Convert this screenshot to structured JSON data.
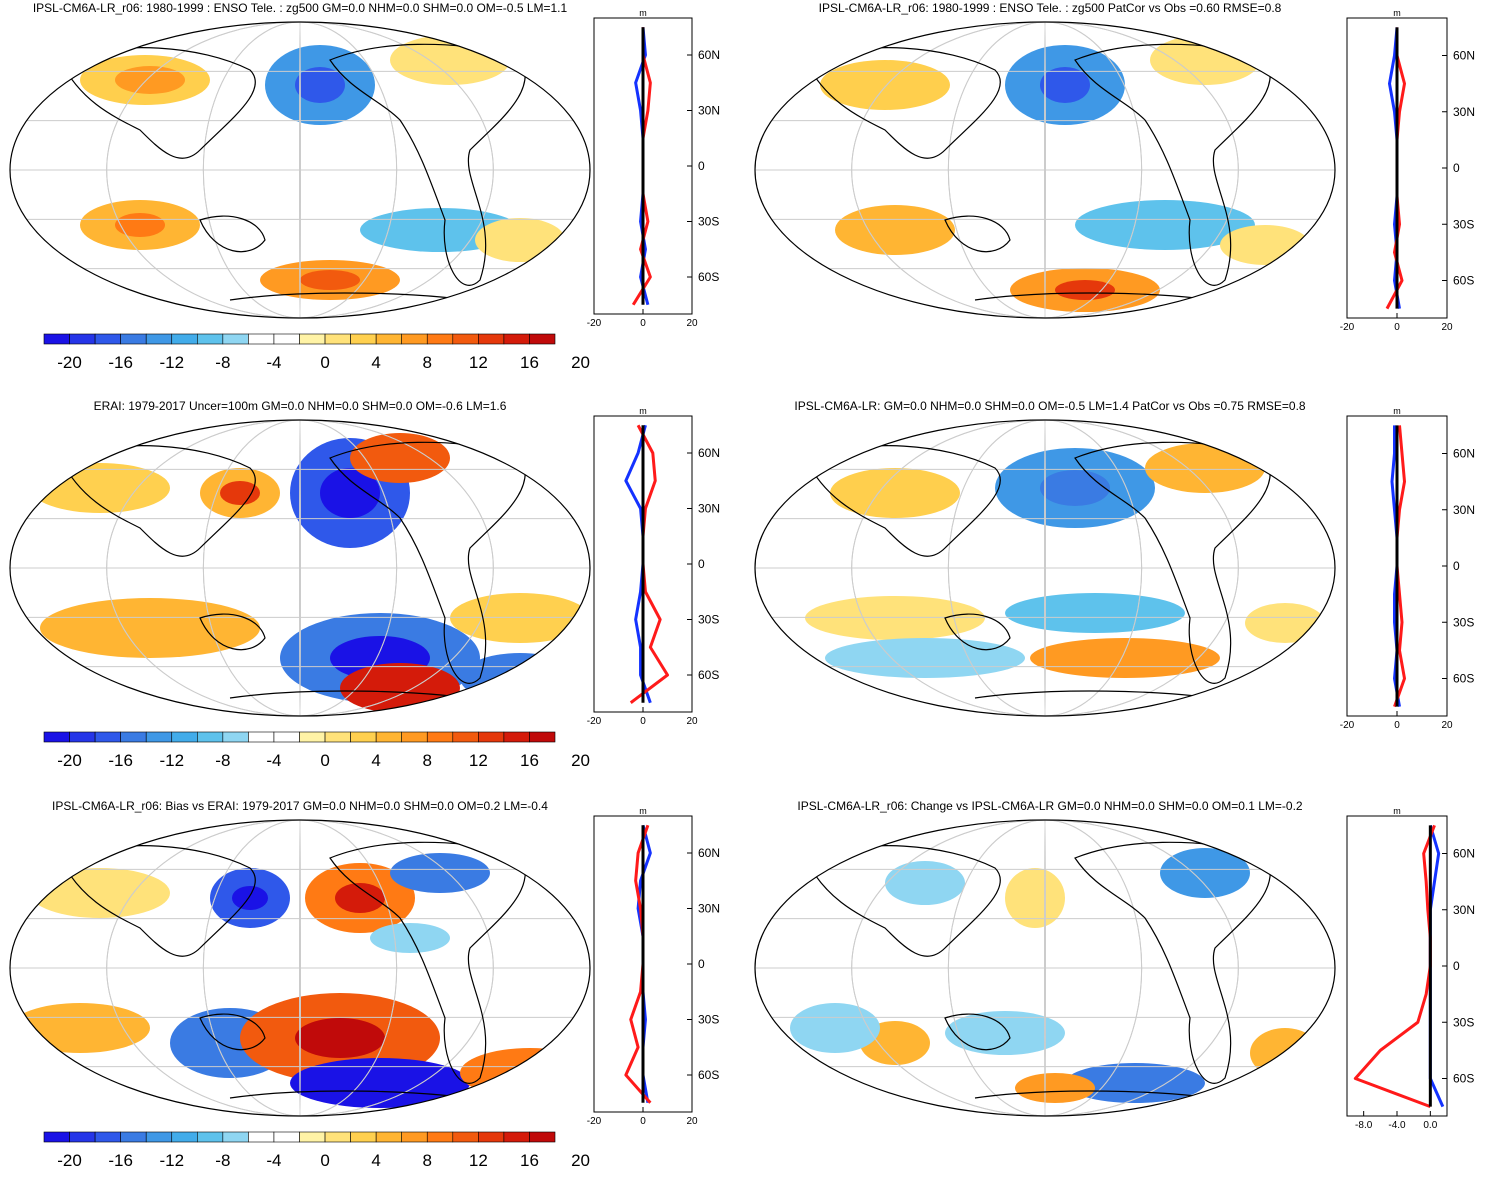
{
  "colorbar": {
    "labels": [
      "-20",
      "-16",
      "-12",
      "-8",
      "-4",
      "0",
      "4",
      "8",
      "12",
      "16",
      "20"
    ],
    "colors": [
      "#1a12e6",
      "#2535e8",
      "#2f58ea",
      "#3a7be3",
      "#3f98e6",
      "#42acea",
      "#5ec2ec",
      "#8fd6f2",
      "#ffffff",
      "#ffffff",
      "#fff3a6",
      "#ffe27a",
      "#ffd04f",
      "#ffb533",
      "#ff9a22",
      "#ff7a14",
      "#f25a0e",
      "#e5380b",
      "#d41b0a",
      "#c00a0a"
    ]
  },
  "profile_colors": {
    "blue": "#1432ff",
    "red": "#ff1a1a",
    "black": "#000000"
  },
  "panels": [
    {
      "title": "IPSL-CM6A-LR_r06: 1980-1999 : ENSO Tele. : zg500 GM=0.0 NHM=0.0 SHM=0.0 OM=-0.5 LM=1.1",
      "unit": "m",
      "lat_ticks": [
        "60N",
        "30N",
        "0",
        "30S",
        "60S"
      ],
      "x_ticks": [
        "-20",
        "0",
        "20"
      ]
    },
    {
      "title": "IPSL-CM6A-LR_r06: 1980-1999 : ENSO Tele. : zg500 PatCor vs Obs =0.60 RMSE=0.8",
      "unit": "m",
      "lat_ticks": [
        "60N",
        "30N",
        "0",
        "30S",
        "60S"
      ],
      "x_ticks": [
        "-20",
        "0",
        "20"
      ]
    },
    {
      "title": "ERAI: 1979-2017 Uncer=100m GM=0.0 NHM=0.0 SHM=0.0 OM=-0.6 LM=1.6",
      "unit": "m",
      "lat_ticks": [
        "60N",
        "30N",
        "0",
        "30S",
        "60S"
      ],
      "x_ticks": [
        "-20",
        "0",
        "20"
      ]
    },
    {
      "title": "IPSL-CM6A-LR: GM=0.0 NHM=0.0 SHM=0.0 OM=-0.5 LM=1.4 PatCor vs Obs =0.75 RMSE=0.8",
      "unit": "m",
      "lat_ticks": [
        "60N",
        "30N",
        "0",
        "30S",
        "60S"
      ],
      "x_ticks": [
        "-20",
        "0",
        "20"
      ]
    },
    {
      "title": "IPSL-CM6A-LR_r06: Bias vs ERAI: 1979-2017 GM=0.0 NHM=0.0 SHM=0.0 OM=0.2 LM=-0.4",
      "unit": "m",
      "lat_ticks": [
        "60N",
        "30N",
        "0",
        "30S",
        "60S"
      ],
      "x_ticks": [
        "-20",
        "0",
        "20"
      ]
    },
    {
      "title": "IPSL-CM6A-LR_r06: Change vs IPSL-CM6A-LR GM=0.0 NHM=0.0 SHM=0.0 OM=0.1 LM=-0.2",
      "unit": "m",
      "lat_ticks": [
        "60N",
        "30N",
        "0",
        "30S",
        "60S"
      ],
      "x_ticks": [
        "-8.0",
        "-4.0",
        "0.0"
      ]
    }
  ],
  "chart_data": [
    {
      "type": "heatmap",
      "title": "IPSL-CM6A-LR_r06: 1980-1999 : ENSO Tele. : zg500 GM=0.0 NHM=0.0 SHM=0.0 OM=-0.5 LM=1.1",
      "colorbar_range": [
        -20,
        20
      ],
      "profile": {
        "xlim": [
          -20,
          20
        ],
        "ylim": [
          -80,
          80
        ],
        "lat": [
          75,
          60,
          45,
          30,
          15,
          0,
          -15,
          -30,
          -45,
          -60,
          -75
        ],
        "series": [
          {
            "name": "",
            "color": "blue",
            "values": [
              0,
              1,
              -3,
              -1,
              0,
              0,
              0,
              -1,
              1,
              -1,
              2
            ]
          },
          {
            "name": "",
            "color": "red",
            "values": [
              0,
              0,
              3,
              2,
              0,
              0,
              0,
              2,
              -1,
              3,
              -4
            ]
          },
          {
            "name": "",
            "color": "black",
            "values": [
              0,
              0,
              0,
              0,
              0,
              0,
              0,
              0,
              0,
              0,
              0
            ]
          }
        ]
      }
    },
    {
      "type": "heatmap",
      "title": "IPSL-CM6A-LR_r06: 1980-1999 : ENSO Tele. : zg500 PatCor vs Obs =0.60 RMSE=0.8",
      "colorbar_range": [
        -20,
        20
      ],
      "profile": {
        "xlim": [
          -20,
          20
        ],
        "ylim": [
          -80,
          80
        ],
        "lat": [
          75,
          60,
          45,
          30,
          15,
          0,
          -15,
          -30,
          -45,
          -60,
          -75
        ],
        "series": [
          {
            "name": "",
            "color": "blue",
            "values": [
              0,
              -1,
              -3,
              -1,
              0,
              0,
              0,
              -1,
              0,
              -1,
              1
            ]
          },
          {
            "name": "",
            "color": "red",
            "values": [
              0,
              0,
              3,
              1,
              0,
              0,
              0,
              1,
              -1,
              2,
              -4
            ]
          },
          {
            "name": "",
            "color": "black",
            "values": [
              0,
              0,
              0,
              0,
              0,
              0,
              0,
              0,
              0,
              0,
              0
            ]
          }
        ]
      }
    },
    {
      "type": "heatmap",
      "title": "ERAI: 1979-2017 Uncer=100m GM=0.0 NHM=0.0 SHM=0.0 OM=-0.6 LM=1.6",
      "colorbar_range": [
        -20,
        20
      ],
      "profile": {
        "xlim": [
          -20,
          20
        ],
        "ylim": [
          -80,
          80
        ],
        "lat": [
          75,
          60,
          45,
          30,
          15,
          0,
          -15,
          -30,
          -45,
          -60,
          -75
        ],
        "series": [
          {
            "name": "",
            "color": "blue",
            "values": [
              1,
              -2,
              -7,
              -1,
              0,
              0,
              -1,
              -3,
              -1,
              -1,
              3
            ]
          },
          {
            "name": "",
            "color": "red",
            "values": [
              -2,
              4,
              5,
              1,
              0,
              0,
              1,
              7,
              3,
              10,
              -5
            ]
          },
          {
            "name": "",
            "color": "black",
            "values": [
              0,
              0,
              0,
              0,
              0,
              0,
              0,
              0,
              0,
              0,
              0
            ]
          }
        ]
      }
    },
    {
      "type": "heatmap",
      "title": "IPSL-CM6A-LR: GM=0.0 NHM=0.0 SHM=0.0 OM=-0.5 LM=1.4 PatCor vs Obs =0.75 RMSE=0.8",
      "colorbar_range": [
        -20,
        20
      ],
      "profile": {
        "xlim": [
          -20,
          20
        ],
        "ylim": [
          -80,
          80
        ],
        "lat": [
          75,
          60,
          45,
          30,
          15,
          0,
          -15,
          -30,
          -45,
          -60,
          -75
        ],
        "series": [
          {
            "name": "",
            "color": "blue",
            "values": [
              -1,
              -1,
              -2,
              -1,
              0,
              0,
              -1,
              -1,
              0,
              -1,
              1
            ]
          },
          {
            "name": "",
            "color": "red",
            "values": [
              1,
              2,
              3,
              1,
              0,
              0,
              1,
              2,
              1,
              3,
              -1
            ]
          },
          {
            "name": "",
            "color": "black",
            "values": [
              0,
              0,
              0,
              0,
              0,
              0,
              0,
              0,
              0,
              0,
              0
            ]
          }
        ]
      }
    },
    {
      "type": "heatmap",
      "title": "IPSL-CM6A-LR_r06: Bias vs ERAI: 1979-2017 GM=0.0 NHM=0.0 SHM=0.0 OM=0.2 LM=-0.4",
      "colorbar_range": [
        -20,
        20
      ],
      "profile": {
        "xlim": [
          -20,
          20
        ],
        "ylim": [
          -80,
          80
        ],
        "lat": [
          75,
          60,
          45,
          30,
          15,
          0,
          -15,
          -30,
          -45,
          -60,
          -75
        ],
        "series": [
          {
            "name": "",
            "color": "blue",
            "values": [
              0,
              3,
              -1,
              -2,
              0,
              0,
              0,
              1,
              0,
              0,
              2
            ]
          },
          {
            "name": "",
            "color": "red",
            "values": [
              2,
              -2,
              -3,
              -1,
              0,
              0,
              -1,
              -5,
              -2,
              -7,
              3
            ]
          },
          {
            "name": "",
            "color": "black",
            "values": [
              0,
              0,
              0,
              0,
              0,
              0,
              0,
              0,
              0,
              0,
              0
            ]
          }
        ]
      }
    },
    {
      "type": "heatmap",
      "title": "IPSL-CM6A-LR_r06: Change vs IPSL-CM6A-LR GM=0.0 NHM=0.0 SHM=0.0 OM=0.1 LM=-0.2",
      "colorbar_range": [
        -20,
        20
      ],
      "profile": {
        "xlim": [
          -10,
          2
        ],
        "ylim": [
          -80,
          80
        ],
        "lat": [
          75,
          60,
          45,
          30,
          15,
          0,
          -15,
          -30,
          -45,
          -60,
          -75
        ],
        "series": [
          {
            "name": "",
            "color": "blue",
            "values": [
              0,
              1,
              0.5,
              0,
              0,
              0,
              0,
              0,
              0,
              0,
              1.5
            ]
          },
          {
            "name": "",
            "color": "red",
            "values": [
              0.5,
              -0.8,
              -0.5,
              -0.3,
              0,
              0,
              -0.5,
              -1.5,
              -6,
              -9,
              0
            ]
          },
          {
            "name": "",
            "color": "black",
            "values": [
              0,
              0,
              0,
              0,
              0,
              0,
              0,
              0,
              0,
              0,
              0
            ]
          }
        ]
      }
    }
  ]
}
